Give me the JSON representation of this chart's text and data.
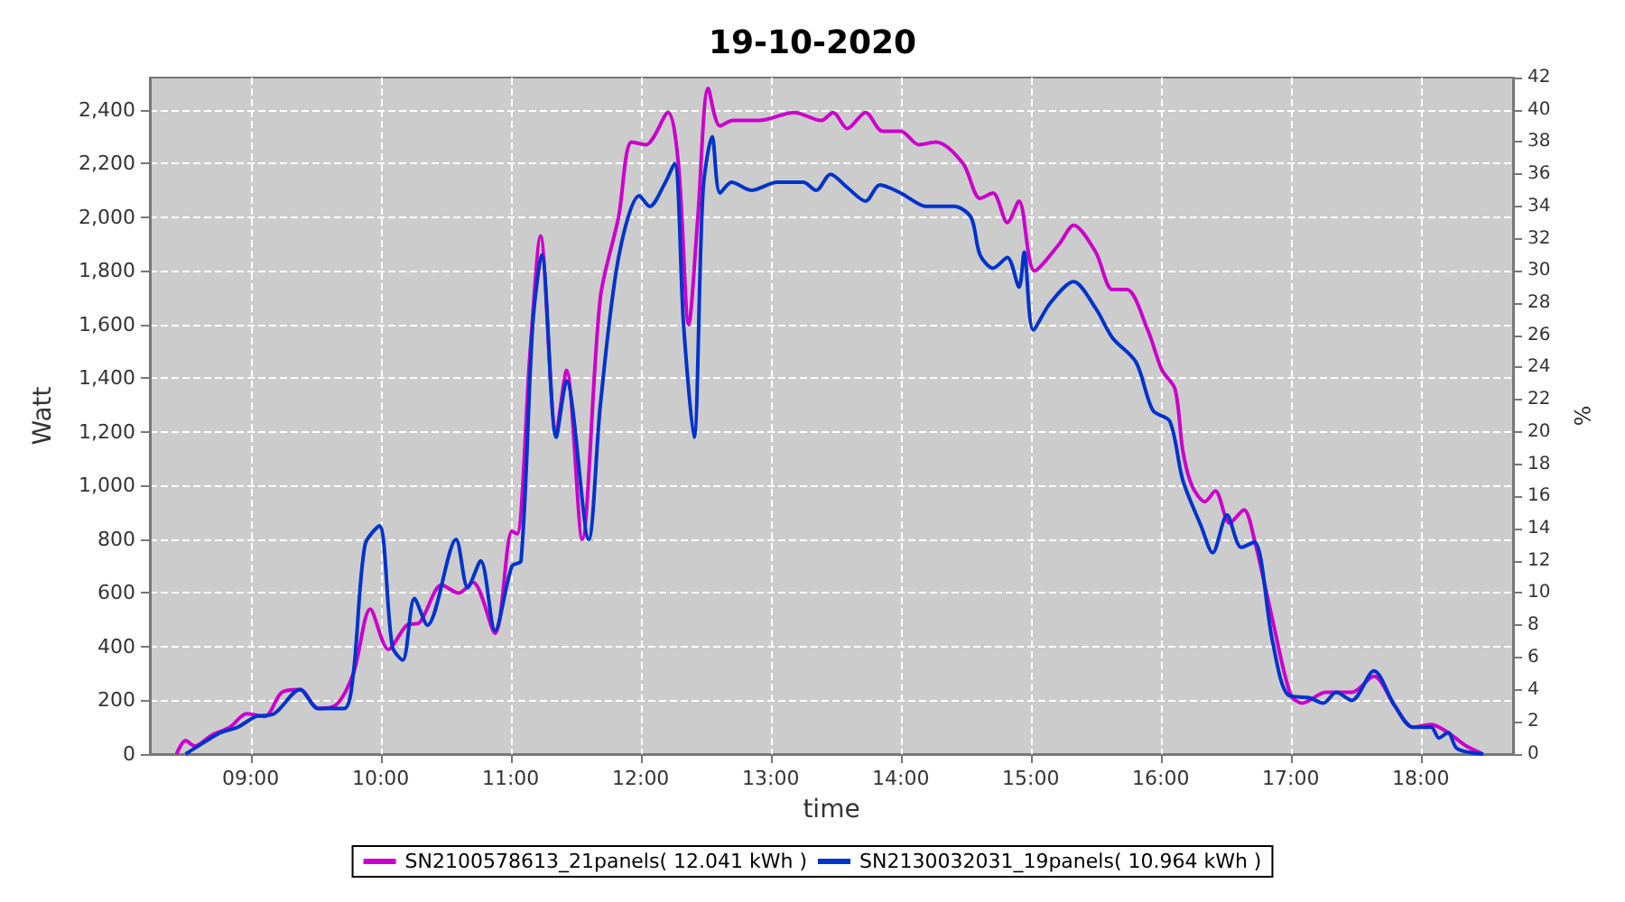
{
  "chart_data": {
    "type": "line",
    "title": "19-10-2020",
    "xlabel": "time",
    "ylabel": "Watt",
    "y2label": "%",
    "xlim": [
      8.225,
      18.71
    ],
    "xticks": [
      {
        "value": 9,
        "label": "09:00"
      },
      {
        "value": 10,
        "label": "10:00"
      },
      {
        "value": 11,
        "label": "11:00"
      },
      {
        "value": 12,
        "label": "12:00"
      },
      {
        "value": 13,
        "label": "13:00"
      },
      {
        "value": 14,
        "label": "14:00"
      },
      {
        "value": 15,
        "label": "15:00"
      },
      {
        "value": 16,
        "label": "16:00"
      },
      {
        "value": 17,
        "label": "17:00"
      },
      {
        "value": 18,
        "label": "18:00"
      }
    ],
    "ylim": [
      0,
      2520
    ],
    "yticks": [
      {
        "value": 0,
        "label": "0"
      },
      {
        "value": 200,
        "label": "200"
      },
      {
        "value": 400,
        "label": "400"
      },
      {
        "value": 600,
        "label": "600"
      },
      {
        "value": 800,
        "label": "800"
      },
      {
        "value": 1000,
        "label": "1,000"
      },
      {
        "value": 1200,
        "label": "1,200"
      },
      {
        "value": 1400,
        "label": "1,400"
      },
      {
        "value": 1600,
        "label": "1,600"
      },
      {
        "value": 1800,
        "label": "1,800"
      },
      {
        "value": 2000,
        "label": "2,000"
      },
      {
        "value": 2200,
        "label": "2,200"
      },
      {
        "value": 2400,
        "label": "2,400"
      }
    ],
    "y2lim": [
      0,
      42
    ],
    "y2ticks": [
      0,
      2,
      4,
      6,
      8,
      10,
      12,
      14,
      16,
      18,
      20,
      22,
      24,
      26,
      28,
      30,
      32,
      34,
      36,
      38,
      40,
      42
    ],
    "grid": true,
    "legend": "bottom",
    "line_style": "solid",
    "series": [
      {
        "name": "SN2100578613_21panels( 12.041 kWh )",
        "color": "#cc00cc",
        "x": [
          8.43,
          8.5,
          8.57,
          8.7,
          8.84,
          8.97,
          9.11,
          9.24,
          9.38,
          9.52,
          9.65,
          9.79,
          9.92,
          10.06,
          10.2,
          10.3,
          10.47,
          10.6,
          10.71,
          10.88,
          11.01,
          11.05,
          11.15,
          11.23,
          11.35,
          11.43,
          11.55,
          11.69,
          11.83,
          11.93,
          12.04,
          12.21,
          12.29,
          12.37,
          12.44,
          12.52,
          12.61,
          12.71,
          12.91,
          13.18,
          13.39,
          13.48,
          13.59,
          13.73,
          13.86,
          14.0,
          14.14,
          14.27,
          14.48,
          14.61,
          14.71,
          14.82,
          14.91,
          15.03,
          15.22,
          15.33,
          15.5,
          15.63,
          15.74,
          15.9,
          16.01,
          16.11,
          16.17,
          16.24,
          16.34,
          16.42,
          16.53,
          16.64,
          16.72,
          16.86,
          17.0,
          17.09,
          17.27,
          17.47,
          17.64,
          17.8,
          17.94,
          18.08,
          18.21,
          18.35,
          18.48
        ],
        "values": [
          0,
          50,
          30,
          70,
          100,
          150,
          140,
          230,
          240,
          170,
          180,
          300,
          540,
          390,
          480,
          490,
          630,
          600,
          640,
          450,
          830,
          820,
          1500,
          1930,
          1200,
          1430,
          800,
          1700,
          2000,
          2280,
          2270,
          2390,
          2200,
          1600,
          2000,
          2480,
          2340,
          2360,
          2360,
          2390,
          2360,
          2390,
          2330,
          2390,
          2320,
          2320,
          2270,
          2280,
          2200,
          2070,
          2090,
          1980,
          2060,
          1800,
          1900,
          1970,
          1870,
          1730,
          1730,
          1580,
          1430,
          1360,
          1130,
          1000,
          940,
          980,
          860,
          910,
          800,
          500,
          220,
          190,
          230,
          230,
          290,
          180,
          100,
          110,
          80,
          30,
          0
        ]
      },
      {
        "name": "SN2130032031_19panels( 10.964 kWh )",
        "color": "#0033cc",
        "x": [
          8.5,
          8.63,
          8.77,
          8.9,
          9.04,
          9.18,
          9.38,
          9.52,
          9.72,
          9.79,
          9.88,
          9.99,
          10.09,
          10.17,
          10.26,
          10.36,
          10.58,
          10.67,
          10.77,
          10.88,
          11.01,
          11.08,
          11.17,
          11.24,
          11.35,
          11.43,
          11.6,
          11.69,
          11.83,
          11.99,
          12.07,
          12.18,
          12.26,
          12.33,
          12.41,
          12.48,
          12.55,
          12.61,
          12.7,
          12.85,
          13.05,
          13.25,
          13.35,
          13.46,
          13.59,
          13.73,
          13.84,
          14.0,
          14.2,
          14.41,
          14.54,
          14.61,
          14.71,
          14.82,
          14.91,
          14.95,
          15.02,
          15.15,
          15.33,
          15.5,
          15.63,
          15.81,
          15.94,
          16.07,
          16.17,
          16.31,
          16.4,
          16.51,
          16.62,
          16.72,
          16.86,
          16.98,
          17.14,
          17.25,
          17.35,
          17.47,
          17.64,
          17.8,
          17.94,
          18.08,
          18.14,
          18.21,
          18.28,
          18.48
        ],
        "values": [
          0,
          40,
          80,
          100,
          140,
          150,
          240,
          170,
          170,
          300,
          780,
          850,
          400,
          350,
          580,
          480,
          800,
          620,
          720,
          460,
          700,
          720,
          1600,
          1860,
          1180,
          1390,
          800,
          1300,
          1850,
          2080,
          2040,
          2120,
          2200,
          1600,
          1180,
          2100,
          2300,
          2090,
          2130,
          2100,
          2130,
          2130,
          2100,
          2160,
          2110,
          2060,
          2120,
          2090,
          2040,
          2040,
          2000,
          1860,
          1810,
          1850,
          1740,
          1870,
          1580,
          1680,
          1760,
          1660,
          1550,
          1460,
          1280,
          1240,
          1020,
          850,
          750,
          890,
          770,
          790,
          420,
          220,
          210,
          190,
          230,
          200,
          310,
          180,
          100,
          100,
          60,
          80,
          20,
          0
        ]
      }
    ]
  }
}
